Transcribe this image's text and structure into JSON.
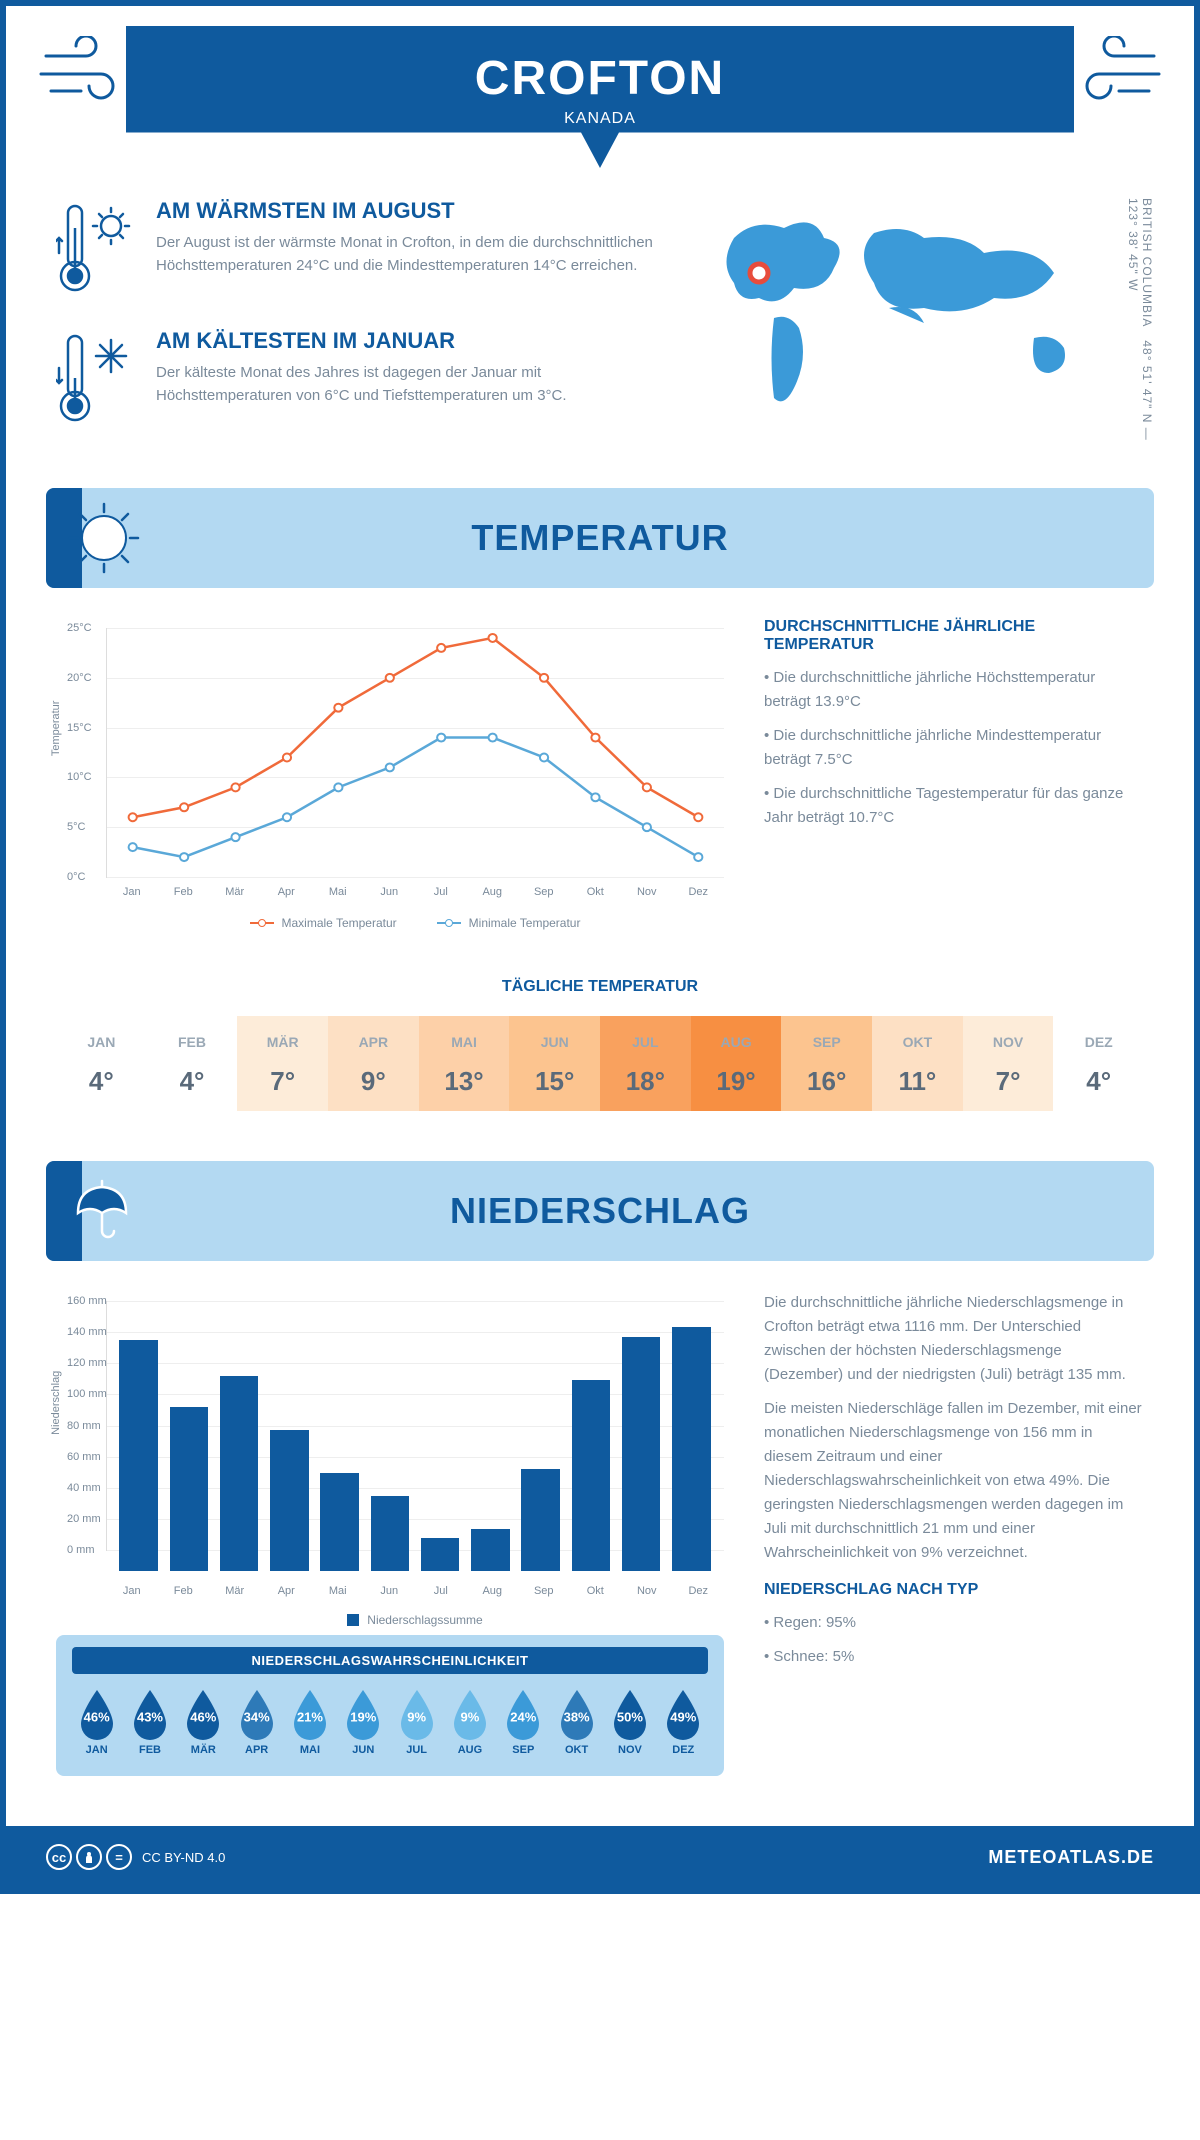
{
  "colors": {
    "primary": "#0f5a9e",
    "light_blue": "#b3d9f2",
    "mid_blue": "#3b9ad8",
    "text_muted": "#7a8a9a",
    "orange": "#f06a3a",
    "line_blue": "#5aa8d8",
    "red_marker": "#e74c3c"
  },
  "header": {
    "city": "CROFTON",
    "country": "KANADA"
  },
  "coords": {
    "line1": "48° 51' 47\" N — 123° 38' 45\" W",
    "region": "BRITISH COLUMBIA"
  },
  "warm": {
    "title": "AM WÄRMSTEN IM AUGUST",
    "text": "Der August ist der wärmste Monat in Crofton, in dem die durchschnittlichen Höchsttemperaturen 24°C und die Mindesttemperaturen 14°C erreichen."
  },
  "cold": {
    "title": "AM KÄLTESTEN IM JANUAR",
    "text": "Der kälteste Monat des Jahres ist dagegen der Januar mit Höchsttemperaturen von 6°C und Tiefsttemperaturen um 3°C."
  },
  "temp_section": {
    "title": "TEMPERATUR"
  },
  "temp_chart": {
    "type": "line",
    "y_label": "Temperatur",
    "ylim": [
      0,
      25
    ],
    "ytick_step": 5,
    "months": [
      "Jan",
      "Feb",
      "Mär",
      "Apr",
      "Mai",
      "Jun",
      "Jul",
      "Aug",
      "Sep",
      "Okt",
      "Nov",
      "Dez"
    ],
    "max_series": {
      "label": "Maximale Temperatur",
      "color": "#f06a3a",
      "values": [
        6,
        7,
        9,
        12,
        17,
        20,
        23,
        24,
        20,
        14,
        9,
        6
      ]
    },
    "min_series": {
      "label": "Minimale Temperatur",
      "color": "#5aa8d8",
      "values": [
        3,
        2,
        4,
        6,
        9,
        11,
        14,
        14,
        12,
        8,
        5,
        2
      ]
    }
  },
  "temp_text": {
    "title": "DURCHSCHNITTLICHE JÄHRLICHE TEMPERATUR",
    "b1": "• Die durchschnittliche jährliche Höchsttemperatur beträgt 13.9°C",
    "b2": "• Die durchschnittliche jährliche Mindesttemperatur beträgt 7.5°C",
    "b3": "• Die durchschnittliche Tagestemperatur für das ganze Jahr beträgt 10.7°C"
  },
  "daily": {
    "title": "TÄGLICHE TEMPERATUR",
    "months": [
      "JAN",
      "FEB",
      "MÄR",
      "APR",
      "MAI",
      "JUN",
      "JUL",
      "AUG",
      "SEP",
      "OKT",
      "NOV",
      "DEZ"
    ],
    "values": [
      "4°",
      "4°",
      "7°",
      "9°",
      "13°",
      "15°",
      "18°",
      "19°",
      "16°",
      "11°",
      "7°",
      "4°"
    ],
    "cell_colors": [
      "#ffffff",
      "#ffffff",
      "#fdecd9",
      "#fde0c4",
      "#fdd0a8",
      "#fcc48f",
      "#f9a15e",
      "#f78f42",
      "#fcc48f",
      "#fde0c4",
      "#fdecd9",
      "#ffffff"
    ]
  },
  "precip_section": {
    "title": "NIEDERSCHLAG"
  },
  "precip_chart": {
    "type": "bar",
    "y_label": "Niederschlag",
    "ylim": [
      0,
      160
    ],
    "ytick_step": 20,
    "months": [
      "Jan",
      "Feb",
      "Mär",
      "Apr",
      "Mai",
      "Jun",
      "Jul",
      "Aug",
      "Sep",
      "Okt",
      "Nov",
      "Dez"
    ],
    "values": [
      148,
      105,
      125,
      90,
      63,
      48,
      21,
      27,
      65,
      122,
      150,
      156
    ],
    "bar_color": "#0f5a9e",
    "legend": "Niederschlagssumme"
  },
  "precip_text": {
    "p1": "Die durchschnittliche jährliche Niederschlagsmenge in Crofton beträgt etwa 1116 mm. Der Unterschied zwischen der höchsten Niederschlagsmenge (Dezember) und der niedrigsten (Juli) beträgt 135 mm.",
    "p2": "Die meisten Niederschläge fallen im Dezember, mit einer monatlichen Niederschlagsmenge von 156 mm in diesem Zeitraum und einer Niederschlagswahrscheinlichkeit von etwa 49%. Die geringsten Niederschlagsmengen werden dagegen im Juli mit durchschnittlich 21 mm und einer Wahrscheinlichkeit von 9% verzeichnet.",
    "type_title": "NIEDERSCHLAG NACH TYP",
    "type1": "• Regen: 95%",
    "type2": "• Schnee: 5%"
  },
  "prob": {
    "title": "NIEDERSCHLAGSWAHRSCHEINLICHKEIT",
    "months": [
      "JAN",
      "FEB",
      "MÄR",
      "APR",
      "MAI",
      "JUN",
      "JUL",
      "AUG",
      "SEP",
      "OKT",
      "NOV",
      "DEZ"
    ],
    "values": [
      "46%",
      "43%",
      "46%",
      "34%",
      "21%",
      "19%",
      "9%",
      "9%",
      "24%",
      "38%",
      "50%",
      "49%"
    ],
    "drop_colors": [
      "#0f5a9e",
      "#0f5a9e",
      "#0f5a9e",
      "#2e7ab8",
      "#3b9ad8",
      "#3b9ad8",
      "#6abae8",
      "#6abae8",
      "#3b9ad8",
      "#2e7ab8",
      "#0f5a9e",
      "#0f5a9e"
    ]
  },
  "footer": {
    "license": "CC BY-ND 4.0",
    "brand": "METEOATLAS.DE"
  }
}
